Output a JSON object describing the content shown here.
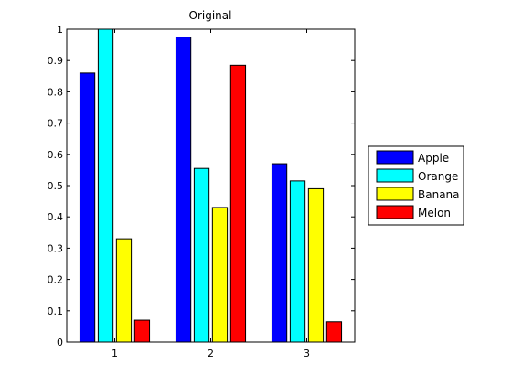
{
  "chart_data": {
    "type": "bar",
    "title": "Original",
    "xlabel": "",
    "ylabel": "",
    "categories": [
      "1",
      "2",
      "3"
    ],
    "ylim": [
      0,
      1
    ],
    "yticks": [
      "0",
      "0.1",
      "0.2",
      "0.3",
      "0.4",
      "0.5",
      "0.6",
      "0.7",
      "0.8",
      "0.9",
      "1"
    ],
    "legend_position": "right",
    "grid": false,
    "series": [
      {
        "name": "Apple",
        "color": "#0000ff",
        "values": [
          0.86,
          0.975,
          0.57
        ]
      },
      {
        "name": "Orange",
        "color": "#00ffff",
        "values": [
          1.0,
          0.555,
          0.515
        ]
      },
      {
        "name": "Banana",
        "color": "#ffff00",
        "values": [
          0.33,
          0.43,
          0.49
        ]
      },
      {
        "name": "Melon",
        "color": "#ff0000",
        "values": [
          0.07,
          0.885,
          0.065
        ]
      }
    ]
  }
}
